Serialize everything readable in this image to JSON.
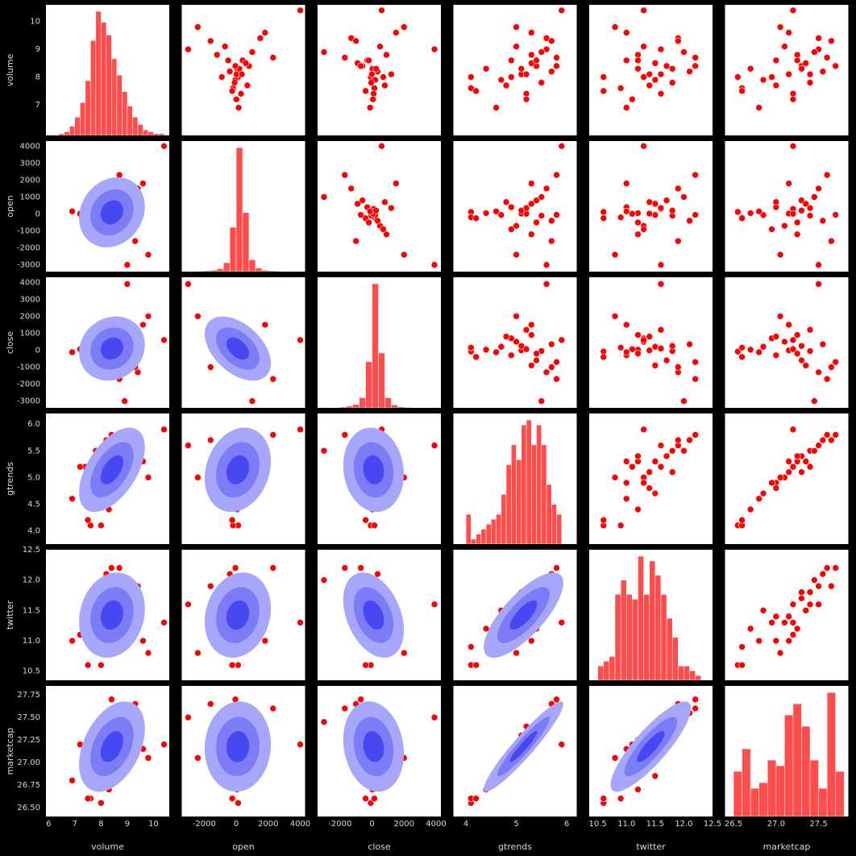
{
  "chart_data": {
    "type": "pairplot",
    "variables": [
      "volume",
      "open",
      "close",
      "gtrends",
      "twitter",
      "marketcap"
    ],
    "color": "#ff0000",
    "hist_color": "#ff4c4c",
    "kde_colors": [
      "#a6a6fa",
      "#7c7cf7",
      "#4848f2"
    ],
    "axes": [
      {
        "lim": [
          5.9,
          10.6
        ],
        "xticks": [
          6,
          7,
          8,
          9,
          10
        ],
        "yticks": [
          7,
          8,
          9,
          10
        ]
      },
      {
        "lim": [
          -3400,
          4300
        ],
        "xticks": [
          -2000,
          0,
          2000,
          4000
        ],
        "yticks": [
          -3000,
          -2000,
          -1000,
          0,
          1000,
          2000,
          3000,
          4000
        ]
      },
      {
        "lim": [
          -3400,
          4300
        ],
        "xticks": [
          -2000,
          0,
          2000,
          4000
        ],
        "yticks": [
          -3000,
          -2000,
          -1000,
          0,
          1000,
          2000,
          3000,
          4000
        ]
      },
      {
        "lim": [
          3.75,
          6.2
        ],
        "xticks": [
          4,
          5,
          6
        ],
        "yticks": [
          {
            "value": 4,
            "label": "4.0"
          },
          4.5,
          {
            "value": 5,
            "label": "5.0"
          },
          5.5,
          {
            "value": 6,
            "label": "6.0"
          }
        ]
      },
      {
        "lim": [
          10.35,
          12.5
        ],
        "xticks": [
          10.5,
          {
            "value": 11,
            "label": "11.0"
          },
          11.5,
          {
            "value": 12,
            "label": "12.0"
          },
          12.5
        ],
        "yticks": [
          10.5,
          {
            "value": 11,
            "label": "11.0"
          },
          11.5,
          {
            "value": 12,
            "label": "12.0"
          },
          12.5
        ]
      },
      {
        "lim": [
          26.4,
          27.85
        ],
        "xticks": [
          26.5,
          {
            "value": 27,
            "label": "27.0"
          },
          27.5
        ],
        "yticks": [
          {
            "value": 26.5,
            "label": "26.50"
          },
          26.75,
          {
            "value": 27,
            "label": "27.00"
          },
          27.25,
          {
            "value": 27.5,
            "label": "27.50"
          },
          27.75
        ]
      }
    ],
    "histograms": [
      {
        "bins": [
          6.2,
          6.4,
          6.6,
          6.8,
          7.0,
          7.2,
          7.4,
          7.6,
          7.8,
          8.0,
          8.2,
          8.4,
          8.6,
          8.8,
          9.0,
          9.2,
          9.4,
          9.6,
          9.8,
          10.0,
          10.2,
          10.4
        ],
        "counts": [
          0,
          1,
          2,
          5,
          10,
          18,
          30,
          52,
          68,
          62,
          55,
          42,
          33,
          24,
          16,
          10,
          6,
          3,
          2,
          1,
          1
        ]
      },
      {
        "bins": [
          -3200,
          -2800,
          -2400,
          -2000,
          -1600,
          -1200,
          -800,
          -400,
          0,
          400,
          800,
          1200,
          1600,
          2000,
          2400,
          2800,
          3200,
          3600,
          4000
        ],
        "counts": [
          1,
          1,
          2,
          3,
          5,
          10,
          30,
          150,
          420,
          200,
          40,
          12,
          5,
          3,
          2,
          1,
          0,
          1
        ]
      },
      {
        "bins": [
          -3200,
          -2800,
          -2400,
          -2000,
          -1600,
          -1200,
          -800,
          -400,
          0,
          400,
          800,
          1200,
          1600,
          2000,
          2400,
          2800,
          3200,
          3600,
          4000
        ],
        "counts": [
          1,
          1,
          1,
          3,
          6,
          12,
          35,
          160,
          430,
          190,
          35,
          10,
          4,
          2,
          1,
          1,
          0,
          1
        ]
      },
      {
        "bins": [
          4.0,
          4.1,
          4.2,
          4.3,
          4.4,
          4.5,
          4.6,
          4.7,
          4.8,
          4.9,
          5.0,
          5.1,
          5.2,
          5.3,
          5.4,
          5.5,
          5.6,
          5.7,
          5.8,
          5.9
        ],
        "counts": [
          6,
          1,
          2,
          3,
          4,
          5,
          6,
          10,
          16,
          20,
          17,
          24,
          25,
          20,
          24,
          20,
          12,
          8,
          6
        ]
      },
      {
        "bins": [
          10.5,
          10.6,
          10.7,
          10.8,
          10.9,
          11.0,
          11.1,
          11.2,
          11.3,
          11.4,
          11.5,
          11.6,
          11.7,
          11.8,
          11.9,
          12.0,
          12.1,
          12.2,
          12.3
        ],
        "counts": [
          3,
          4,
          5,
          18,
          21,
          18,
          17,
          26,
          18,
          25,
          22,
          18,
          13,
          9,
          3,
          3,
          2,
          1
        ]
      },
      {
        "bins": [
          26.5,
          26.6,
          26.7,
          26.8,
          26.9,
          27.0,
          27.1,
          27.2,
          27.3,
          27.4,
          27.5,
          27.6,
          27.7,
          27.8
        ],
        "counts": [
          8,
          12,
          5,
          6,
          10,
          9,
          18,
          20,
          16,
          10,
          5,
          22,
          8
        ]
      }
    ],
    "observations": [
      [
        8.0,
        7.6,
        8.3,
        7.9,
        8.6,
        9.1,
        8.1,
        7.4,
        8.8,
        8.4,
        7.8,
        9.4,
        8.2,
        8.7,
        7.2,
        9.8,
        8.5,
        8.0,
        6.9,
        10.4,
        9.0,
        8.9,
        7.5,
        8.3,
        8.6,
        7.7,
        9.3,
        8.1,
        8.4,
        9.6
      ],
      [
        120,
        -200,
        50,
        -60,
        400,
        -700,
        20,
        300,
        -1200,
        800,
        -100,
        1500,
        -400,
        2300,
        10,
        -2400,
        600,
        -900,
        150,
        4000,
        -3000,
        1000,
        -250,
        200,
        -500,
        700,
        -1600,
        350,
        -50,
        1800
      ],
      [
        -80,
        150,
        30,
        200,
        -300,
        500,
        -10,
        100,
        900,
        -600,
        -50,
        -1300,
        350,
        -1700,
        60,
        2000,
        -900,
        700,
        -120,
        600,
        3900,
        -3000,
        -400,
        250,
        -200,
        800,
        -1000,
        1200,
        -700,
        1500
      ],
      [
        4.1,
        4.1,
        4.4,
        4.7,
        4.9,
        5.0,
        5.1,
        5.2,
        5.3,
        5.4,
        5.5,
        5.6,
        5.7,
        5.8,
        5.2,
        5.0,
        5.3,
        4.9,
        4.6,
        5.9,
        5.6,
        5.5,
        4.2,
        5.1,
        5.4,
        4.8,
        5.7,
        5.2,
        5.8,
        5.3
      ],
      [
        10.6,
        10.9,
        11.2,
        11.5,
        11.0,
        11.3,
        11.4,
        11.6,
        11.2,
        11.7,
        11.8,
        11.9,
        12.1,
        12.2,
        11.1,
        10.8,
        11.5,
        11.3,
        11.0,
        11.3,
        11.6,
        12.0,
        10.6,
        11.8,
        11.2,
        11.4,
        11.9,
        11.6,
        12.2,
        11.0
      ],
      [
        26.55,
        26.6,
        26.7,
        26.85,
        27.0,
        27.1,
        27.15,
        27.2,
        27.25,
        27.3,
        27.4,
        27.5,
        27.55,
        27.6,
        27.2,
        27.05,
        27.35,
        26.95,
        26.8,
        27.2,
        27.5,
        27.45,
        26.6,
        27.3,
        27.25,
        27.0,
        27.65,
        27.4,
        27.7,
        27.15
      ]
    ]
  }
}
